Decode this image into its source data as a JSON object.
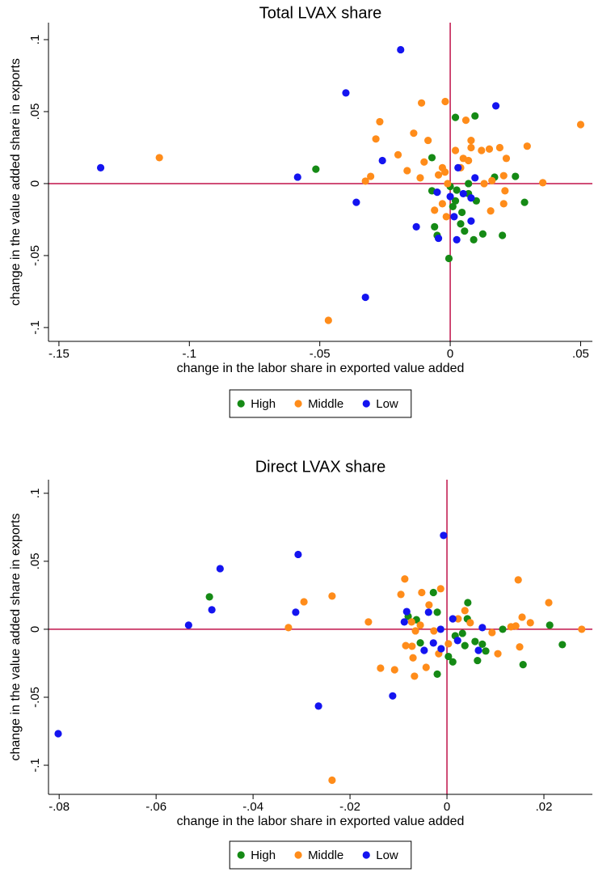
{
  "chart_data": [
    {
      "type": "scatter",
      "title": "Total LVAX share",
      "xlabel": "change in the labor share in exported value added",
      "ylabel": "change in the value added share in exports",
      "xlim": [
        -0.154,
        0.0545
      ],
      "ylim": [
        -0.1096,
        0.1118
      ],
      "xticks": [
        {
          "value": -0.15,
          "label": "-.15"
        },
        {
          "value": -0.1,
          "label": "-.1"
        },
        {
          "value": -0.05,
          "label": "-.05"
        },
        0,
        {
          "value": 0.05,
          "label": ".05"
        }
      ],
      "yticks": [
        {
          "value": -0.1,
          "label": "-.1"
        },
        {
          "value": -0.05,
          "label": "-.05"
        },
        0,
        {
          "value": 0.05,
          "label": ".05"
        },
        {
          "value": 0.1,
          "label": ".1"
        }
      ],
      "xline": 0,
      "yline": 0,
      "line_color": "#c0134a",
      "series": [
        {
          "name": "High",
          "color": "#158a15",
          "x": [
            -0.0515,
            0.002,
            0.0095,
            -0.007,
            -0.006,
            -0.005,
            -0.0005,
            0.002,
            0.0045,
            0.0055,
            0.009,
            0.0125,
            0.02,
            0.0285,
            0.025,
            0.017,
            0,
            0.0025,
            0.007,
            0.001,
            0.004,
            -0.007,
            0.007,
            0.01
          ],
          "y": [
            0.01,
            0.046,
            0.047,
            0.018,
            -0.03,
            -0.036,
            -0.052,
            -0.012,
            -0.02,
            -0.033,
            -0.039,
            -0.035,
            -0.036,
            -0.013,
            0.005,
            0.0045,
            -0.002,
            -0.0045,
            -0.007,
            -0.016,
            -0.028,
            -0.005,
            0,
            -0.012
          ]
        },
        {
          "name": "Middle",
          "color": "#ff8c1a",
          "x": [
            -0.1115,
            -0.0467,
            -0.0325,
            -0.0305,
            -0.0285,
            -0.027,
            -0.02,
            -0.0165,
            -0.014,
            -0.011,
            -0.0085,
            -0.0019,
            0.006,
            0.008,
            0.008,
            0.012,
            0.015,
            0.019,
            0.0215,
            0.0295,
            0.05,
            0.0355,
            0.0155,
            0.0205,
            0.021,
            0.0205,
            0.016,
            -0.0115,
            -0.01,
            -0.0045,
            -0.003,
            -0.002,
            -0.001,
            0.002,
            0.005,
            0.004,
            -0.0015,
            -0.006,
            -0.003,
            0.007,
            0.013
          ],
          "y": [
            0.018,
            -0.095,
            0.0017,
            0.005,
            0.031,
            0.043,
            0.02,
            0.009,
            0.035,
            0.056,
            0.03,
            0.057,
            0.044,
            0.025,
            0.03,
            0.023,
            0.024,
            0.025,
            0.0175,
            0.026,
            0.041,
            0.0006,
            -0.019,
            -0.014,
            -0.005,
            0.0055,
            0.002,
            0.004,
            0.015,
            0.006,
            0.011,
            0.008,
            0,
            0.023,
            0.0175,
            0.011,
            -0.023,
            -0.0185,
            -0.014,
            0.016,
            0
          ]
        },
        {
          "name": "Low",
          "color": "#1414f0",
          "x": [
            -0.134,
            -0.04,
            -0.019,
            -0.0585,
            -0.036,
            -0.0325,
            -0.026,
            -0.013,
            -0.0045,
            0.0175,
            0.0025,
            0.008,
            0.0015,
            0.0095,
            0.008,
            0.005,
            0,
            -0.005,
            0.003
          ],
          "y": [
            0.011,
            0.063,
            0.093,
            0.0045,
            -0.013,
            -0.079,
            0.016,
            -0.03,
            -0.038,
            0.054,
            -0.039,
            -0.026,
            -0.023,
            0.004,
            -0.01,
            -0.007,
            -0.009,
            -0.006,
            0.011
          ]
        }
      ]
    },
    {
      "type": "scatter",
      "title": "Direct LVAX share",
      "xlabel": "change in the labor share in exported value added",
      "ylabel": "change in the value added share in exports",
      "xlim": [
        -0.0822,
        0.03
      ],
      "ylim": [
        -0.1214,
        0.11
      ],
      "xticks": [
        {
          "value": -0.08,
          "label": "-.08"
        },
        {
          "value": -0.06,
          "label": "-.06"
        },
        {
          "value": -0.04,
          "label": "-.04"
        },
        {
          "value": -0.02,
          "label": "-.02"
        },
        0,
        {
          "value": 0.02,
          "label": ".02"
        }
      ],
      "yticks": [
        {
          "value": -0.1,
          "label": "-.1"
        },
        {
          "value": -0.05,
          "label": "-.05"
        },
        0,
        {
          "value": 0.05,
          "label": ".05"
        },
        {
          "value": 0.1,
          "label": ".1"
        }
      ],
      "xline": 0,
      "yline": 0,
      "line_color": "#c0134a",
      "series": [
        {
          "name": "High",
          "color": "#158a15",
          "x": [
            -0.049,
            -0.008,
            -0.0063,
            -0.0028,
            -0.002,
            0.0003,
            0.0012,
            -0.002,
            0.0043,
            0.0042,
            0.0032,
            0.0058,
            0.0073,
            0.008,
            0.0063,
            0.0157,
            0.0037,
            0.0017,
            0.0212,
            0.0238,
            0.0115,
            -0.0055
          ],
          "y": [
            0.0238,
            0.0095,
            0.007,
            0.027,
            0.0125,
            -0.02,
            -0.024,
            -0.033,
            0.0196,
            0.0077,
            -0.003,
            -0.009,
            -0.011,
            -0.016,
            -0.023,
            -0.026,
            -0.012,
            -0.0048,
            0.003,
            -0.0113,
            0,
            -0.01
          ]
        },
        {
          "name": "Middle",
          "color": "#ff8c1a",
          "x": [
            -0.0237,
            -0.0237,
            -0.0295,
            -0.0327,
            -0.0162,
            -0.0137,
            -0.0108,
            -0.0087,
            -0.0095,
            -0.0073,
            -0.0067,
            -0.0052,
            -0.0043,
            -0.0013,
            -0.0017,
            -0.007,
            -0.0065,
            -0.0055,
            0.0003,
            0.0037,
            0.0023,
            0.0048,
            0.0093,
            0.0105,
            0.0132,
            0.0142,
            0.0147,
            0.015,
            0.0155,
            0.0172,
            0.021,
            0.0278,
            -0.0037,
            -0.0027,
            -0.0085,
            -0.0072
          ],
          "y": [
            -0.111,
            0.0244,
            0.0202,
            0.0012,
            0.0054,
            -0.0286,
            -0.0298,
            0.037,
            0.0256,
            0.0054,
            -0.0345,
            0.027,
            -0.028,
            0.0298,
            -0.018,
            -0.021,
            -0.0012,
            0.003,
            -0.0107,
            0.0137,
            0.0077,
            0.0048,
            -0.0024,
            -0.018,
            0.0018,
            0.0024,
            0.0363,
            -0.013,
            0.0089,
            0.0048,
            0.0196,
            0,
            0.0179,
            -0.0012,
            -0.012,
            -0.0125
          ]
        },
        {
          "name": "Low",
          "color": "#1414f0",
          "x": [
            -0.0802,
            -0.0533,
            -0.0485,
            -0.0468,
            -0.0307,
            -0.0312,
            -0.0265,
            -0.0112,
            -0.0007,
            -0.0083,
            -0.0038,
            -0.0012,
            -0.0047,
            -0.0028,
            0.0022,
            0.0065,
            0.0073,
            0.0012,
            -0.0013,
            -0.0088
          ],
          "y": [
            -0.0768,
            0.003,
            0.0143,
            0.0446,
            0.055,
            0.0125,
            -0.0565,
            -0.049,
            0.069,
            0.013,
            0.0125,
            -0.0143,
            -0.0155,
            -0.0101,
            -0.0083,
            -0.0155,
            0.0012,
            0.0077,
            0,
            0.0054
          ]
        }
      ]
    }
  ]
}
